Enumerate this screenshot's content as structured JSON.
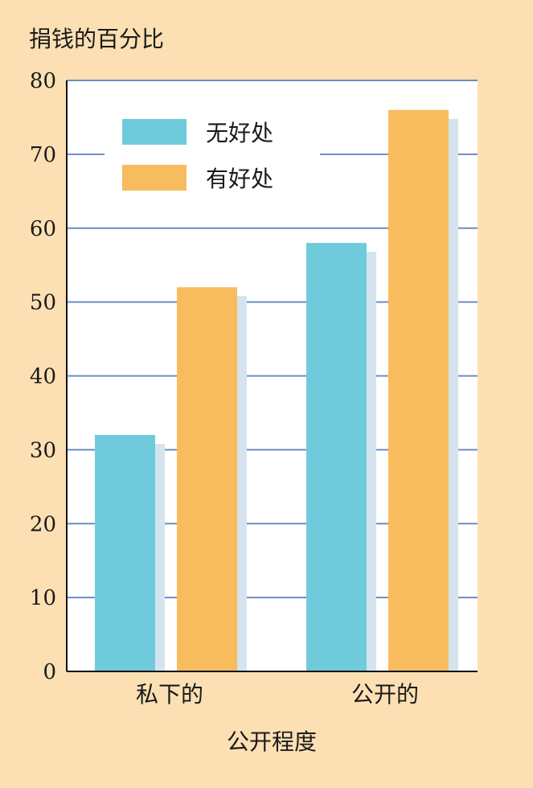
{
  "chart_data": {
    "type": "bar",
    "ylabel": "捐钱的百分比",
    "xlabel": "公开程度",
    "categories": [
      "私下的",
      "公开的"
    ],
    "ylim": [
      0,
      80
    ],
    "yticks": [
      0,
      10,
      20,
      30,
      40,
      50,
      60,
      70,
      80
    ],
    "grid": true,
    "legend_position": "top-left",
    "series": [
      {
        "name": "无好处",
        "color": "#6fcbdc",
        "values": [
          32,
          58
        ]
      },
      {
        "name": "有好处",
        "color": "#f8bc5e",
        "values": [
          52,
          76
        ]
      }
    ],
    "shadow_color": "#d4e4ef",
    "grid_color": "#6b8cbf",
    "background": "#fce0b3"
  }
}
